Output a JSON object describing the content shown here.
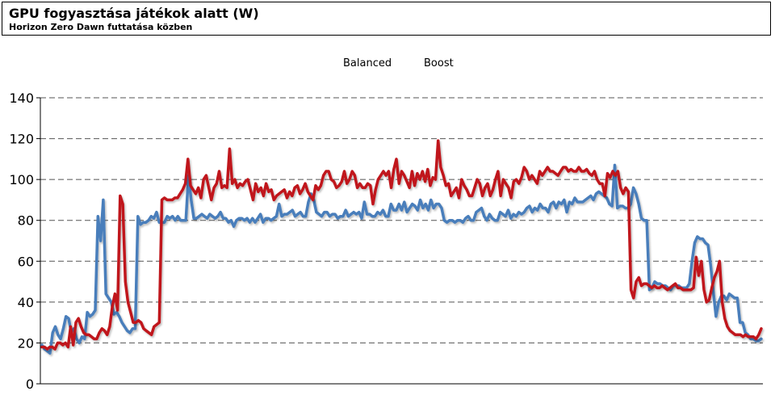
{
  "chart_data": {
    "type": "line",
    "title": "GPU fogyasztása játékok alatt (W)",
    "subtitle": "Horizon Zero Dawn futtatása közben",
    "xlabel": "",
    "ylabel": "",
    "ylim": [
      0,
      140
    ],
    "yticks": [
      0,
      20,
      40,
      60,
      80,
      100,
      120,
      140
    ],
    "grid": true,
    "legend_position": "top-center",
    "series": [
      {
        "name": "Balanced",
        "color": "#4a7ebb",
        "values": [
          19,
          17,
          16,
          15,
          25,
          28,
          24,
          22,
          27,
          33,
          32,
          25,
          27,
          22,
          20,
          23,
          22,
          35,
          33,
          34,
          36,
          82,
          70,
          90,
          44,
          42,
          40,
          34,
          35,
          33,
          30,
          28,
          26,
          25,
          27,
          27,
          82,
          78,
          79,
          79,
          80,
          82,
          81,
          84,
          79,
          79,
          79,
          82,
          81,
          82,
          80,
          82,
          80,
          80,
          80,
          102,
          90,
          81,
          81,
          82,
          83,
          82,
          81,
          83,
          82,
          81,
          82,
          84,
          81,
          81,
          79,
          80,
          77,
          80,
          81,
          81,
          80,
          81,
          79,
          81,
          79,
          81,
          83,
          79,
          81,
          81,
          80,
          81,
          82,
          88,
          82,
          83,
          83,
          84,
          85,
          82,
          83,
          84,
          82,
          82,
          89,
          93,
          90,
          84,
          83,
          82,
          84,
          84,
          82,
          83,
          83,
          81,
          82,
          82,
          85,
          82,
          83,
          84,
          83,
          84,
          81,
          89,
          83,
          83,
          82,
          82,
          84,
          83,
          85,
          82,
          82,
          88,
          85,
          85,
          88,
          85,
          89,
          84,
          86,
          88,
          87,
          85,
          90,
          86,
          88,
          85,
          90,
          86,
          88,
          88,
          86,
          80,
          79,
          80,
          80,
          79,
          80,
          80,
          79,
          81,
          82,
          80,
          80,
          84,
          85,
          86,
          82,
          80,
          83,
          81,
          80,
          80,
          84,
          83,
          82,
          85,
          81,
          83,
          82,
          84,
          83,
          84,
          86,
          87,
          84,
          86,
          85,
          88,
          86,
          86,
          84,
          88,
          89,
          86,
          89,
          88,
          90,
          84,
          89,
          88,
          91,
          89,
          89,
          89,
          90,
          91,
          92,
          90,
          93,
          94,
          93,
          92,
          91,
          88,
          87,
          107,
          86,
          87,
          87,
          86,
          86,
          88,
          96,
          93,
          88,
          81,
          80,
          80,
          46,
          47,
          50,
          49,
          49,
          48,
          48,
          47,
          46,
          48,
          48,
          48,
          47,
          47,
          47,
          49,
          60,
          69,
          72,
          71,
          71,
          69,
          68,
          58,
          45,
          33,
          40,
          43,
          43,
          41,
          44,
          43,
          42,
          42,
          30,
          30,
          25,
          24,
          22,
          22,
          21,
          21,
          22
        ]
      },
      {
        "name": "Boost",
        "color": "#c0171c",
        "values": [
          18,
          18,
          17,
          18,
          18,
          17,
          20,
          20,
          19,
          20,
          18,
          28,
          19,
          30,
          32,
          28,
          25,
          24,
          24,
          23,
          22,
          22,
          25,
          27,
          26,
          24,
          28,
          38,
          44,
          36,
          92,
          88,
          50,
          40,
          35,
          30,
          30,
          31,
          30,
          27,
          26,
          25,
          24,
          28,
          29,
          30,
          90,
          91,
          90,
          90,
          90,
          91,
          91,
          93,
          95,
          98,
          110,
          97,
          95,
          93,
          96,
          91,
          100,
          102,
          96,
          90,
          96,
          98,
          104,
          96,
          97,
          96,
          115,
          98,
          100,
          96,
          98,
          97,
          99,
          100,
          95,
          90,
          98,
          94,
          96,
          92,
          98,
          94,
          95,
          90,
          92,
          93,
          94,
          95,
          91,
          94,
          92,
          96,
          97,
          93,
          95,
          98,
          94,
          92,
          90,
          97,
          95,
          97,
          102,
          104,
          104,
          100,
          99,
          96,
          97,
          99,
          104,
          98,
          100,
          104,
          102,
          96,
          98,
          96,
          96,
          98,
          97,
          88,
          95,
          100,
          102,
          104,
          102,
          104,
          96,
          105,
          110,
          98,
          104,
          102,
          99,
          96,
          104,
          97,
          103,
          100,
          104,
          99,
          105,
          97,
          101,
          100,
          119,
          106,
          102,
          97,
          98,
          92,
          94,
          96,
          91,
          100,
          97,
          95,
          92,
          92,
          96,
          100,
          98,
          92,
          96,
          98,
          92,
          95,
          100,
          104,
          92,
          100,
          98,
          96,
          91,
          99,
          100,
          98,
          101,
          106,
          104,
          100,
          102,
          100,
          98,
          104,
          102,
          104,
          106,
          104,
          104,
          103,
          102,
          104,
          106,
          106,
          104,
          105,
          104,
          104,
          106,
          104,
          104,
          105,
          103,
          102,
          104,
          100,
          98,
          98,
          92,
          103,
          101,
          104,
          102,
          104,
          96,
          93,
          96,
          94,
          46,
          42,
          50,
          52,
          48,
          49,
          49,
          48,
          47,
          48,
          47,
          47,
          48,
          47,
          46,
          47,
          48,
          49,
          47,
          47,
          46,
          46,
          46,
          46,
          47,
          62,
          53,
          60,
          46,
          40,
          41,
          47,
          52,
          55,
          60,
          40,
          32,
          28,
          26,
          25,
          24,
          24,
          24,
          23,
          24,
          23,
          23,
          23,
          22,
          24,
          27
        ]
      }
    ]
  }
}
